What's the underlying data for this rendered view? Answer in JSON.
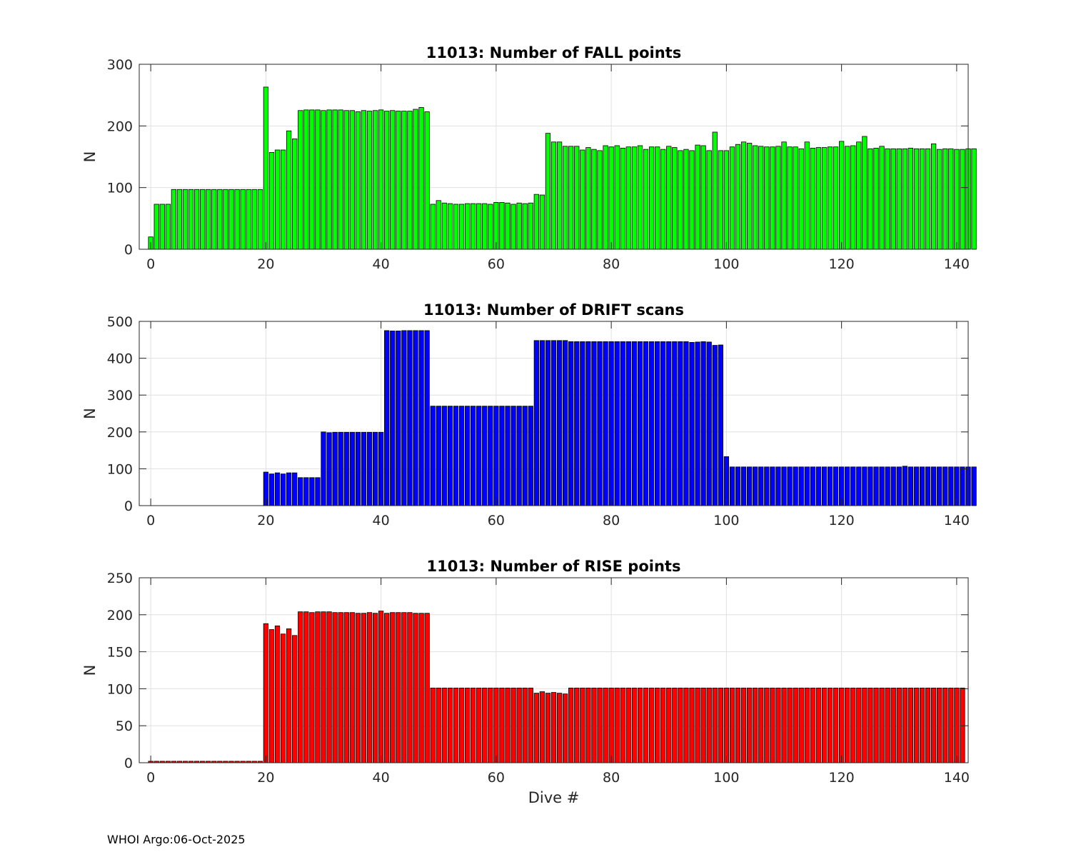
{
  "footer": "WHOI Argo:06-Oct-2025",
  "chart_data": [
    {
      "type": "bar",
      "title": "11013: Number of FALL points",
      "xlabel": "",
      "ylabel": "N",
      "color": "#00ff00",
      "xlim": [
        -2,
        142
      ],
      "ylim": [
        0,
        300
      ],
      "xticks": [
        0,
        20,
        40,
        60,
        80,
        100,
        120,
        140
      ],
      "yticks": [
        0,
        100,
        200,
        300
      ],
      "grid": true,
      "x_start": 0,
      "values": [
        20,
        73,
        73,
        73,
        97,
        97,
        97,
        97,
        97,
        97,
        97,
        97,
        97,
        97,
        97,
        97,
        97,
        97,
        97,
        97,
        263,
        157,
        161,
        161,
        192,
        179,
        225,
        226,
        226,
        226,
        225,
        226,
        226,
        226,
        225,
        225,
        223,
        225,
        224,
        225,
        226,
        224,
        225,
        224,
        224,
        224,
        227,
        230,
        223,
        73,
        79,
        75,
        74,
        73,
        73,
        74,
        74,
        74,
        74,
        73,
        76,
        76,
        75,
        73,
        75,
        74,
        75,
        89,
        88,
        188,
        174,
        174,
        167,
        167,
        167,
        161,
        165,
        162,
        160,
        168,
        166,
        168,
        164,
        166,
        166,
        168,
        162,
        166,
        166,
        162,
        167,
        165,
        160,
        162,
        160,
        169,
        168,
        160,
        190,
        160,
        160,
        166,
        170,
        174,
        172,
        168,
        167,
        166,
        166,
        167,
        174,
        166,
        166,
        163,
        174,
        164,
        165,
        165,
        166,
        166,
        175,
        167,
        168,
        174,
        183,
        163,
        164,
        167,
        163,
        163,
        163,
        163,
        164,
        163,
        163,
        163,
        171,
        162,
        163,
        163,
        162,
        162,
        163,
        163
      ]
    },
    {
      "type": "bar",
      "title": "11013: Number of DRIFT scans",
      "xlabel": "",
      "ylabel": "N",
      "color": "#0000ff",
      "xlim": [
        -2,
        142
      ],
      "ylim": [
        0,
        500
      ],
      "xticks": [
        0,
        20,
        40,
        60,
        80,
        100,
        120,
        140
      ],
      "yticks": [
        0,
        100,
        200,
        300,
        400,
        500
      ],
      "grid": true,
      "x_start": 0,
      "values": [
        0,
        0,
        0,
        0,
        0,
        0,
        0,
        0,
        0,
        0,
        0,
        0,
        0,
        0,
        0,
        0,
        0,
        0,
        0,
        0,
        91,
        86,
        89,
        86,
        89,
        89,
        76,
        76,
        76,
        76,
        200,
        198,
        199,
        199,
        199,
        199,
        199,
        199,
        199,
        199,
        199,
        475,
        474,
        474,
        475,
        475,
        475,
        475,
        475,
        270,
        270,
        270,
        270,
        270,
        270,
        270,
        270,
        270,
        270,
        270,
        270,
        270,
        270,
        270,
        270,
        270,
        270,
        448,
        448,
        448,
        448,
        448,
        448,
        445,
        445,
        445,
        445,
        445,
        445,
        445,
        445,
        445,
        445,
        445,
        445,
        445,
        445,
        445,
        445,
        445,
        445,
        445,
        445,
        445,
        443,
        444,
        445,
        444,
        435,
        436,
        133,
        105,
        105,
        105,
        105,
        105,
        105,
        105,
        105,
        105,
        105,
        105,
        105,
        105,
        105,
        105,
        105,
        105,
        105,
        105,
        105,
        105,
        105,
        105,
        105,
        105,
        105,
        105,
        105,
        105,
        105,
        107,
        105,
        105,
        105,
        105,
        105,
        105,
        105,
        105,
        105,
        105,
        105,
        105
      ]
    },
    {
      "type": "bar",
      "title": "11013: Number of RISE points",
      "xlabel": "Dive #",
      "ylabel": "N",
      "color": "#ff0000",
      "xlim": [
        -2,
        142
      ],
      "ylim": [
        0,
        250
      ],
      "xticks": [
        0,
        20,
        40,
        60,
        80,
        100,
        120,
        140
      ],
      "yticks": [
        0,
        50,
        100,
        150,
        200,
        250
      ],
      "grid": true,
      "x_start": 0,
      "values": [
        2,
        2,
        2,
        2,
        2,
        2,
        2,
        2,
        2,
        2,
        2,
        2,
        2,
        2,
        2,
        2,
        2,
        2,
        2,
        2,
        188,
        180,
        185,
        174,
        181,
        172,
        204,
        204,
        203,
        204,
        204,
        204,
        203,
        203,
        203,
        203,
        202,
        202,
        203,
        202,
        205,
        202,
        203,
        203,
        203,
        203,
        202,
        202,
        202,
        101,
        101,
        101,
        101,
        101,
        101,
        101,
        101,
        101,
        101,
        101,
        101,
        101,
        101,
        101,
        101,
        101,
        101,
        94,
        96,
        94,
        95,
        94,
        93,
        101,
        101,
        101,
        101,
        101,
        101,
        101,
        101,
        101,
        101,
        101,
        101,
        101,
        101,
        101,
        101,
        101,
        101,
        101,
        101,
        101,
        101,
        101,
        101,
        101,
        101,
        101,
        101,
        101,
        101,
        101,
        101,
        101,
        101,
        101,
        101,
        101,
        101,
        101,
        101,
        101,
        101,
        101,
        101,
        101,
        101,
        101,
        101,
        101,
        101,
        101,
        101,
        101,
        101,
        101,
        101,
        101,
        101,
        101,
        101,
        101,
        101,
        101,
        101,
        101,
        101,
        101,
        101,
        101
      ]
    }
  ]
}
